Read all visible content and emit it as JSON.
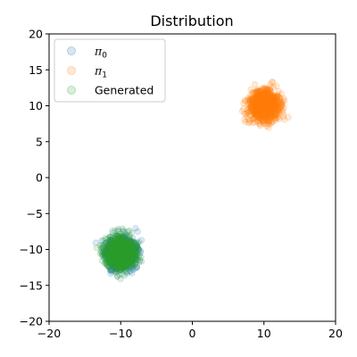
{
  "chart_data": {
    "type": "scatter",
    "title": "Distribution",
    "xlabel": "",
    "ylabel": "",
    "xlim": [
      -20,
      20
    ],
    "ylim": [
      -20,
      20
    ],
    "xticks": [
      -20,
      -10,
      0,
      10,
      20
    ],
    "yticks": [
      -20,
      -15,
      -10,
      -5,
      0,
      5,
      10,
      15,
      20
    ],
    "xtick_labels": [
      "−20",
      "−10",
      "0",
      "10",
      "20"
    ],
    "ytick_labels": [
      "−20",
      "−15",
      "−10",
      "−5",
      "0",
      "5",
      "10",
      "15",
      "20"
    ],
    "grid": false,
    "legend_position": "top-left",
    "series": [
      {
        "name": "π₀",
        "label_base": "π",
        "label_sub": "0",
        "color": "#1f77b4",
        "center": [
          -10,
          -10.5
        ],
        "std": [
          1.0,
          1.0
        ],
        "n_points": 1200,
        "seed": 11
      },
      {
        "name": "π₁",
        "label_base": "π",
        "label_sub": "1",
        "color": "#ff7f0e",
        "center": [
          10,
          10
        ],
        "std": [
          1.0,
          1.0
        ],
        "n_points": 1200,
        "seed": 23
      },
      {
        "name": "Generated",
        "label_base": "Generated",
        "label_sub": "",
        "color": "#2ca02c",
        "center": [
          -10,
          -10.5
        ],
        "std": [
          1.0,
          1.0
        ],
        "n_points": 1200,
        "seed": 37
      }
    ]
  }
}
